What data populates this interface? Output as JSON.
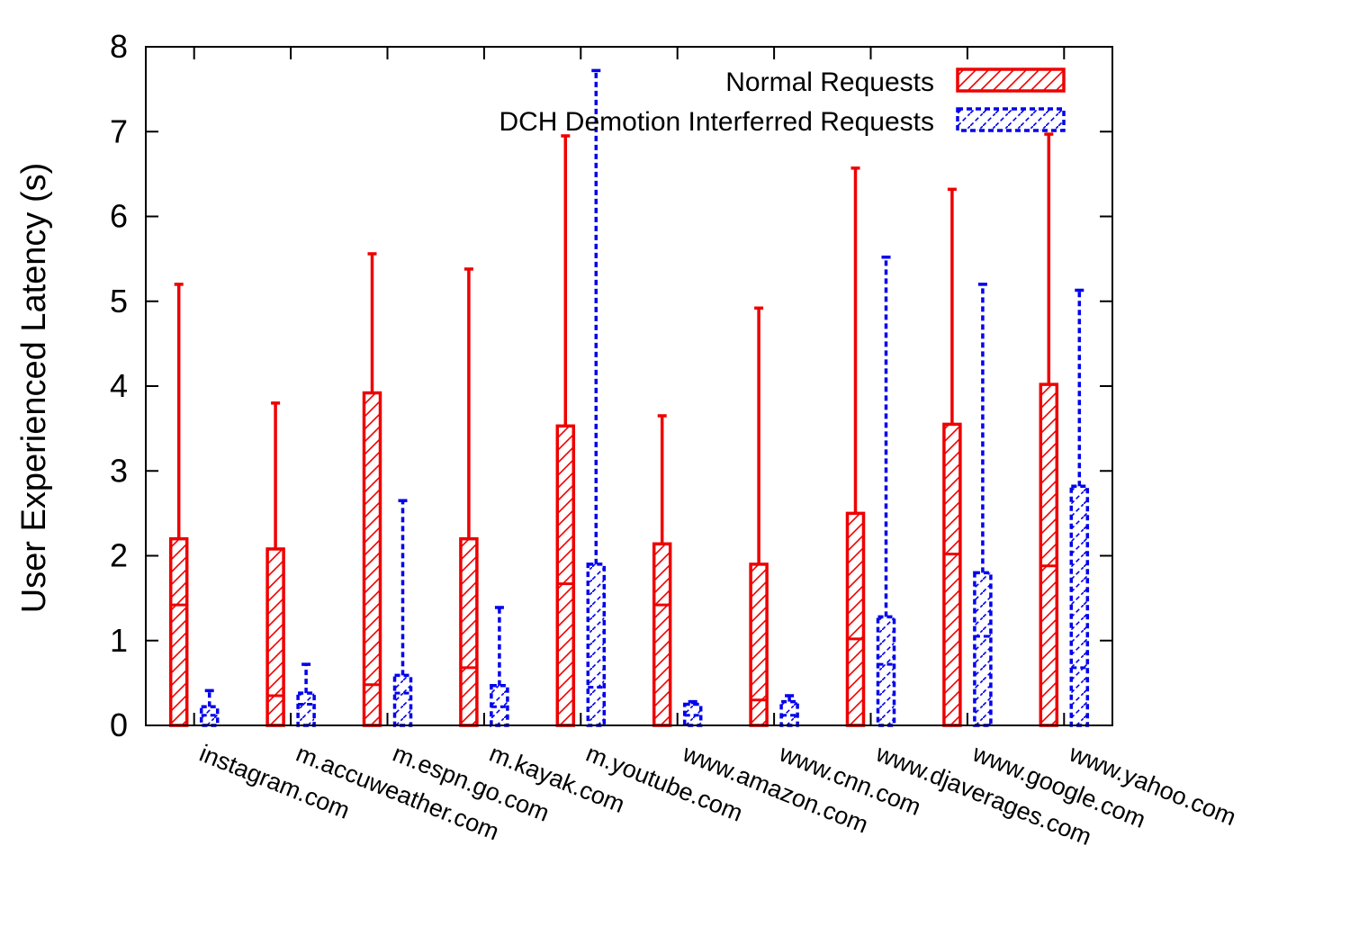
{
  "chart_data": {
    "type": "bar",
    "ylabel": "User Experienced Latency (s)",
    "ylim": [
      0,
      8
    ],
    "yticks": [
      "0",
      "1",
      "2",
      "3",
      "4",
      "5",
      "6",
      "7",
      "8"
    ],
    "grid": false,
    "legend_position": "top-right",
    "categories": [
      "instagram.com",
      "m.accuweather.com",
      "m.espn.go.com",
      "m.kayak.com",
      "m.youtube.com",
      "www.amazon.com",
      "www.cnn.com",
      "www.djaverages.com",
      "www.google.com",
      "www.yahoo.com"
    ],
    "series": [
      {
        "name": "Normal Requests",
        "color": "#ee0000",
        "line_style": "solid",
        "values": [
          2.2,
          2.08,
          3.92,
          2.2,
          3.53,
          2.14,
          1.9,
          2.5,
          3.55,
          4.02
        ],
        "median": [
          1.42,
          0.35,
          0.48,
          0.68,
          1.67,
          1.42,
          0.3,
          1.02,
          2.02,
          1.88
        ],
        "max": [
          5.2,
          3.8,
          5.56,
          5.38,
          6.95,
          3.65,
          4.92,
          6.57,
          6.32,
          6.97
        ]
      },
      {
        "name": "DCH Demotion Interferred Requests",
        "color": "#0000ee",
        "line_style": "dashed",
        "values": [
          0.22,
          0.38,
          0.59,
          0.47,
          1.9,
          0.25,
          0.28,
          1.28,
          1.8,
          2.82
        ],
        "median": [
          0.12,
          0.25,
          0.38,
          0.22,
          0.45,
          0.12,
          0.12,
          0.72,
          1.05,
          0.68
        ],
        "max": [
          0.41,
          0.72,
          2.65,
          1.39,
          7.72,
          0.28,
          0.35,
          5.52,
          5.2,
          5.13
        ]
      }
    ]
  }
}
